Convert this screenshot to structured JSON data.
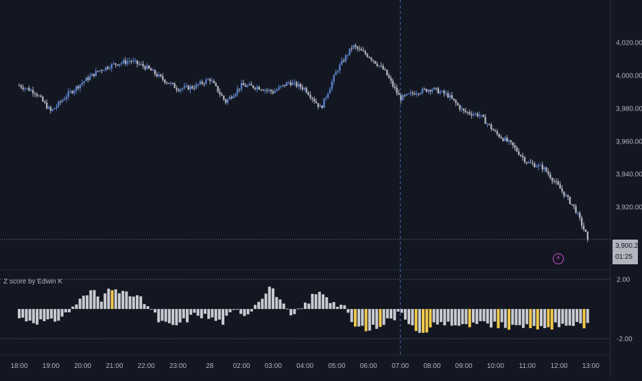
{
  "colors": {
    "background": "#131722",
    "bull_candle": "#5b7fc9",
    "bear_candle": "#b2b5be",
    "hist_normal": "#c9cbd1",
    "hist_highlight": "#f2c94c",
    "grid_dashed": "#787b86",
    "crosshair": "#4a6cb3",
    "alert": "#d64fd0"
  },
  "price_axis": {
    "labels": [
      "4,020.00",
      "4,000.00",
      "3,980.00",
      "3,960.00",
      "3,940.00",
      "3,920.00"
    ],
    "values": [
      4020,
      4000,
      3980,
      3960,
      3940,
      3920
    ],
    "range": [
      3883,
      4046
    ]
  },
  "last_price": {
    "price_label": "3,900.24",
    "countdown": "01:25",
    "value": 3900.24
  },
  "alert_icon": "lightning-icon",
  "indicator": {
    "title": "Z score by Edwin K",
    "levels": [
      {
        "label": "2.00",
        "value": 2
      },
      {
        "label": "-2.00",
        "value": -2
      }
    ],
    "range": [
      -3,
      2.5
    ]
  },
  "time_axis": {
    "labels": [
      "18:00",
      "19:00",
      "20:00",
      "21:00",
      "22:00",
      "23:00",
      "28",
      "02:00",
      "03:00",
      "04:00",
      "05:00",
      "06:00",
      "07:00",
      "08:00",
      "09:00",
      "10:00",
      "11:00",
      "12:00",
      "13:00"
    ]
  },
  "chart_data": {
    "type": "candlestick",
    "price_series": [
      {
        "t": 0,
        "close": 3994
      },
      {
        "t": 0.5,
        "close": 3990
      },
      {
        "t": 1,
        "close": 3978
      },
      {
        "t": 1.5,
        "close": 3988
      },
      {
        "t": 2,
        "close": 3996
      },
      {
        "t": 2.5,
        "close": 4003
      },
      {
        "t": 3,
        "close": 4007
      },
      {
        "t": 3.5,
        "close": 4009
      },
      {
        "t": 4,
        "close": 4005
      },
      {
        "t": 4.5,
        "close": 3998
      },
      {
        "t": 5,
        "close": 3992
      },
      {
        "t": 5.5,
        "close": 3993
      },
      {
        "t": 6,
        "close": 3998
      },
      {
        "t": 6.5,
        "close": 3984
      },
      {
        "t": 7,
        "close": 3994
      },
      {
        "t": 7.5,
        "close": 3993
      },
      {
        "t": 8,
        "close": 3990
      },
      {
        "t": 8.5,
        "close": 3996
      },
      {
        "t": 9,
        "close": 3992
      },
      {
        "t": 9.5,
        "close": 3980
      },
      {
        "t": 10,
        "close": 4003
      },
      {
        "t": 10.5,
        "close": 4018
      },
      {
        "t": 11,
        "close": 4012
      },
      {
        "t": 11.5,
        "close": 4003
      },
      {
        "t": 12,
        "close": 3986
      },
      {
        "t": 12.5,
        "close": 3990
      },
      {
        "t": 13,
        "close": 3992
      },
      {
        "t": 13.5,
        "close": 3988
      },
      {
        "t": 14,
        "close": 3978
      },
      {
        "t": 14.5,
        "close": 3976
      },
      {
        "t": 15,
        "close": 3965
      },
      {
        "t": 15.5,
        "close": 3958
      },
      {
        "t": 16,
        "close": 3947
      },
      {
        "t": 16.5,
        "close": 3944
      },
      {
        "t": 17,
        "close": 3932
      },
      {
        "t": 17.5,
        "close": 3919
      },
      {
        "t": 17.9,
        "close": 3901
      }
    ],
    "zscore_series": [
      {
        "t": 0,
        "z": -0.6
      },
      {
        "t": 0.5,
        "z": -0.8
      },
      {
        "t": 1,
        "z": -0.9
      },
      {
        "t": 1.5,
        "z": -0.3
      },
      {
        "t": 1.8,
        "z": 0.4
      },
      {
        "t": 2.1,
        "z": 0.9
      },
      {
        "t": 2.4,
        "z": 1.3
      },
      {
        "t": 2.6,
        "z": 0.7
      },
      {
        "t": 2.9,
        "z": 1.3
      },
      {
        "t": 3.2,
        "z": 1.0
      },
      {
        "t": 3.6,
        "z": 0.9
      },
      {
        "t": 4.0,
        "z": 0.4
      },
      {
        "t": 4.4,
        "z": -0.8
      },
      {
        "t": 4.8,
        "z": -1.2
      },
      {
        "t": 5.2,
        "z": -0.8
      },
      {
        "t": 5.6,
        "z": -0.3
      },
      {
        "t": 6.0,
        "z": -0.6
      },
      {
        "t": 6.4,
        "z": -0.9
      },
      {
        "t": 6.8,
        "z": -0.1
      },
      {
        "t": 7.2,
        "z": -0.3
      },
      {
        "t": 7.6,
        "z": 0.8
      },
      {
        "t": 7.9,
        "z": 1.5
      },
      {
        "t": 8.2,
        "z": 0.5
      },
      {
        "t": 8.6,
        "z": -0.6
      },
      {
        "t": 9.0,
        "z": 0.3
      },
      {
        "t": 9.3,
        "z": 1.0
      },
      {
        "t": 9.6,
        "z": 1.1
      },
      {
        "t": 9.9,
        "z": 0.4
      },
      {
        "t": 10.2,
        "z": 0.2
      },
      {
        "t": 10.6,
        "z": -1.3
      },
      {
        "t": 11.0,
        "z": -1.4
      },
      {
        "t": 11.4,
        "z": -1.0
      },
      {
        "t": 11.8,
        "z": -0.6
      },
      {
        "t": 12.0,
        "z": 0.1
      },
      {
        "t": 12.3,
        "z": -1.0
      },
      {
        "t": 12.6,
        "z": -1.8
      },
      {
        "t": 13.0,
        "z": -1.0
      },
      {
        "t": 13.5,
        "z": -0.9
      },
      {
        "t": 14.0,
        "z": -1.2
      },
      {
        "t": 14.5,
        "z": -1.0
      },
      {
        "t": 15.0,
        "z": -1.1
      },
      {
        "t": 15.5,
        "z": -1.2
      },
      {
        "t": 16.0,
        "z": -1.1
      },
      {
        "t": 16.5,
        "z": -1.2
      },
      {
        "t": 17.0,
        "z": -1.1
      },
      {
        "t": 17.5,
        "z": -1.0
      },
      {
        "t": 17.9,
        "z": -1.1
      }
    ]
  }
}
